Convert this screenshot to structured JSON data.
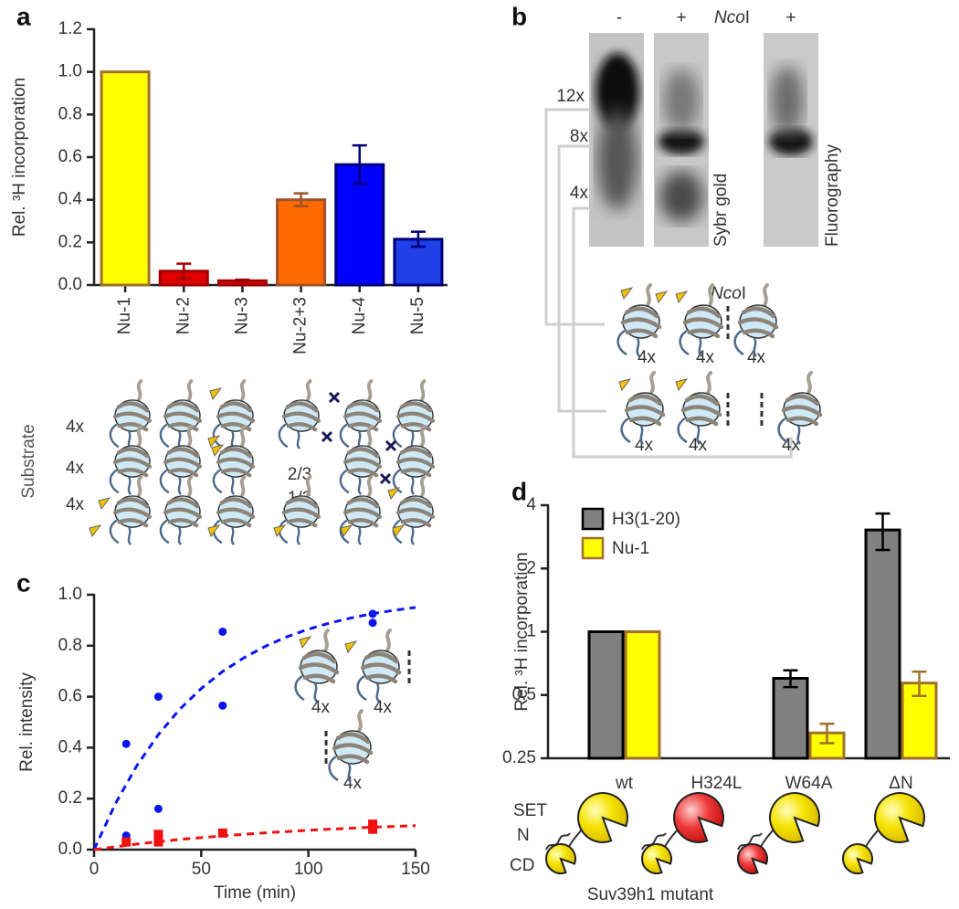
{
  "panel_labels": [
    "a",
    "b",
    "c",
    "d"
  ],
  "chart_data": [
    {
      "type": "bar",
      "ylabel": "Rel. ³H incorporation",
      "categories": [
        "Nu-1",
        "Nu-2",
        "Nu-3",
        "Nu-2+3",
        "Nu-4",
        "Nu-5"
      ],
      "values": [
        1,
        0.065,
        0.02,
        0.4,
        0.565,
        0.215
      ],
      "errors": [
        null,
        0.035,
        0.005,
        0.03,
        0.09,
        0.035
      ],
      "colors": [
        "#ffff00",
        "#e00000",
        "#e00000",
        "#ff6a00",
        "#0000ff",
        "#1f3fe8"
      ],
      "edge_colors": [
        "#a0702a",
        "#a00000",
        "#a00000",
        "#a0502a",
        "#00007a",
        "#00007a"
      ],
      "ylim": [
        0,
        1.2
      ],
      "yticks": [
        {
          "value": 0,
          "label": "0.0"
        },
        0.2,
        0.4,
        0.6,
        0.8,
        {
          "value": 1,
          "label": "1.0"
        },
        1.2
      ]
    },
    {
      "type": "scatter",
      "xlabel": "Time (min)",
      "ylabel": "Rel. intensity",
      "xlim": [
        0,
        150
      ],
      "xticks": [
        0,
        50,
        100,
        150
      ],
      "ylim": [
        0,
        1
      ],
      "yticks": [
        {
          "value": 0,
          "label": "0.0"
        },
        0.2,
        0.4,
        0.6,
        0.8,
        {
          "value": 1,
          "label": "1.0"
        }
      ],
      "series": [
        {
          "color": "#0a14f0",
          "mark": "circle",
          "x": [
            15,
            15,
            30,
            30,
            60,
            60,
            130,
            130
          ],
          "values": [
            0.415,
            0.055,
            0.6,
            0.16,
            0.855,
            0.565,
            0.925,
            0.89
          ]
        },
        {
          "color": "#f01010",
          "mark": "square",
          "x": [
            15,
            30,
            30,
            60,
            130,
            130
          ],
          "values": [
            0.03,
            0.06,
            0.03,
            0.065,
            0.1,
            0.08
          ]
        },
        {
          "color": "#0a14f0",
          "mark": "line",
          "dash": "8 6",
          "x": [
            0,
            10,
            20,
            30,
            40,
            50,
            60,
            70,
            80,
            90,
            100,
            110,
            120,
            130,
            140,
            150
          ],
          "values": [
            0,
            0.181,
            0.33,
            0.451,
            0.551,
            0.632,
            0.699,
            0.753,
            0.798,
            0.835,
            0.865,
            0.889,
            0.909,
            0.926,
            0.939,
            0.95
          ]
        },
        {
          "color": "#f01010",
          "mark": "line",
          "dash": "8 6",
          "x": [
            0,
            10,
            20,
            30,
            40,
            50,
            60,
            70,
            80,
            90,
            100,
            110,
            120,
            130,
            140,
            150
          ],
          "values": [
            0,
            0.011,
            0.022,
            0.031,
            0.04,
            0.047,
            0.054,
            0.06,
            0.066,
            0.071,
            0.076,
            0.08,
            0.084,
            0.088,
            0.091,
            0.094
          ]
        }
      ]
    },
    {
      "type": "bar",
      "ylabel": "Rel. ³H incorporation",
      "yscale": "log",
      "categories": [
        "wt",
        "H324L",
        "W64A",
        "ΔN"
      ],
      "series": [
        {
          "name": "H3(1-20)",
          "color": "#808080",
          "edge_color": "#000000",
          "values": [
            1,
            null,
            0.6,
            3.05
          ],
          "errors": [
            null,
            null,
            0.055,
            0.6
          ]
        },
        {
          "name": "Nu-1",
          "color": "#ffff00",
          "edge_color": "#a0702a",
          "values": [
            1,
            null,
            0.33,
            0.57
          ],
          "errors": [
            null,
            null,
            0.035,
            0.075
          ]
        }
      ],
      "ylim": [
        0.25,
        4
      ],
      "yticks": [
        0.25,
        0.5,
        1,
        2,
        4
      ],
      "legend": "upper left"
    }
  ],
  "substrate": {
    "label": "Substrate",
    "repeats": [
      "4x",
      "4x",
      "4x"
    ],
    "ratios": [
      "2/3",
      "1/3"
    ]
  },
  "gel": {
    "lanes": [
      "-",
      "+",
      "+"
    ],
    "enzyme": [
      "Nco",
      "I"
    ],
    "sizes": [
      "12x",
      "8x",
      "4x"
    ],
    "stains": [
      "Sybr gold",
      "Fluorography"
    ],
    "cut_site": [
      "Nco",
      "I"
    ],
    "top_fragments": [
      "4x",
      "4x",
      "4x"
    ],
    "bottom_fragments": [
      "4x",
      "4x",
      "4x"
    ]
  },
  "time_course_inset": [
    "4x",
    "4x",
    "4x"
  ],
  "mutant_diagram": {
    "domains": [
      "SET",
      "N",
      "CD"
    ],
    "caption": "Suv39h1 mutant"
  }
}
